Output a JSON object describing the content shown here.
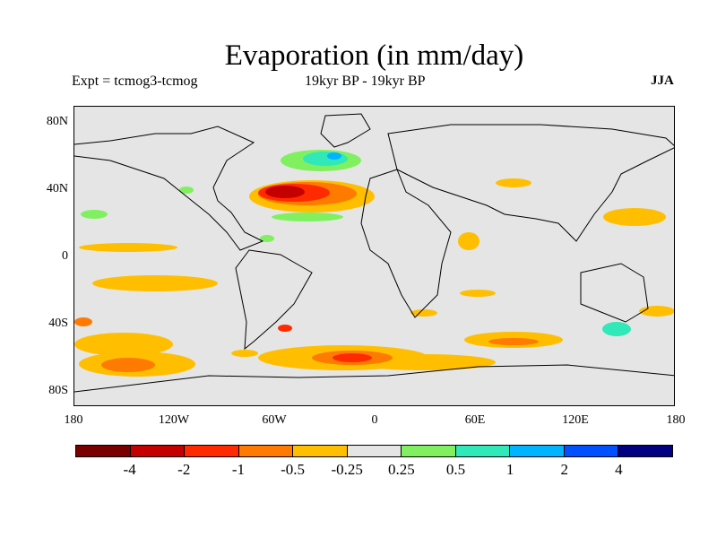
{
  "title": "Evaporation (in mm/day)",
  "experiment": "Expt = tcmog3-tcmog",
  "period": "19kyr BP - 19kyr BP",
  "season": "JJA",
  "y_axis_labels": [
    "80N",
    "40N",
    "0",
    "40S",
    "80S"
  ],
  "x_axis_labels": [
    "180",
    "120W",
    "60W",
    "0",
    "60E",
    "120E",
    "180"
  ],
  "colorbar": {
    "colors": [
      "#7a0000",
      "#c40000",
      "#ff2a00",
      "#ff7a00",
      "#ffbf00",
      "#e5e5e5",
      "#80f060",
      "#30e8b8",
      "#00b4ff",
      "#0050ff",
      "#000080"
    ],
    "labels": [
      "-4",
      "-2",
      "-1",
      "-0.5",
      "-0.25",
      "0.25",
      "0.5",
      "1",
      "2",
      "4"
    ]
  }
}
